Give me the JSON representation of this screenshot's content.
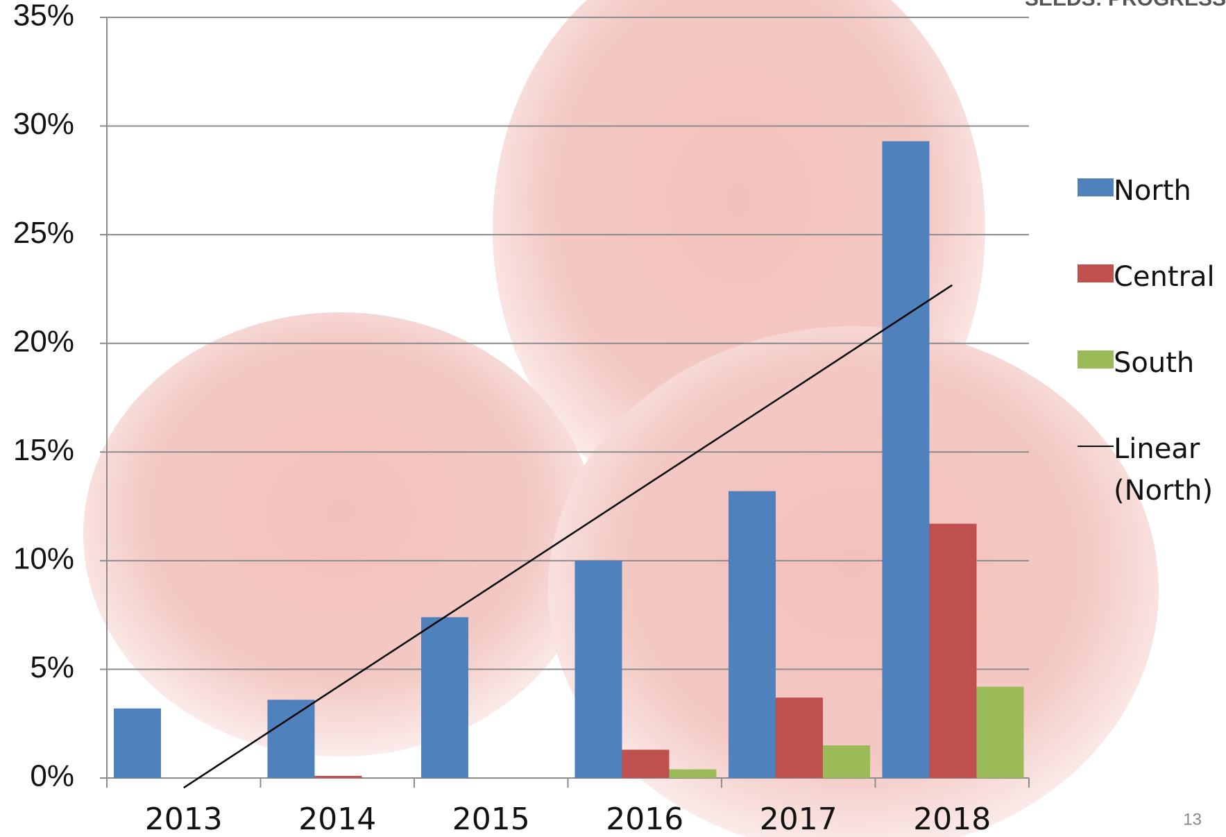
{
  "chart_data": {
    "type": "bar",
    "header_text": "SEEDS: PROGRESS",
    "page_number": "13",
    "categories": [
      "2013",
      "2014",
      "2015",
      "2016",
      "2017",
      "2018"
    ],
    "series": [
      {
        "name": "North",
        "color": "#4f81bd",
        "values": [
          3.2,
          3.6,
          7.4,
          10.0,
          13.2,
          29.3
        ]
      },
      {
        "name": "Central",
        "color": "#c0504d",
        "values": [
          0,
          0.1,
          0,
          1.3,
          3.7,
          11.7
        ]
      },
      {
        "name": "South",
        "color": "#9bbb59",
        "values": [
          0,
          0,
          0,
          0.4,
          1.5,
          4.2
        ]
      },
      {
        "name": "Linear (North)",
        "type": "trendline",
        "color": "#000000",
        "values": [
          -0.45,
          4.18,
          8.8,
          13.43,
          18.05,
          22.68
        ]
      }
    ],
    "ylim": [
      0,
      35
    ],
    "yticks": [
      {
        "value": 0,
        "label": "0%"
      },
      {
        "value": 5,
        "label": "5%"
      },
      {
        "value": 10,
        "label": "10%"
      },
      {
        "value": 15,
        "label": "15%"
      },
      {
        "value": 20,
        "label": "20%"
      },
      {
        "value": 25,
        "label": "25%"
      },
      {
        "value": 30,
        "label": "30%"
      },
      {
        "value": 35,
        "label": "35%"
      }
    ],
    "grid": true,
    "legend": "right"
  }
}
